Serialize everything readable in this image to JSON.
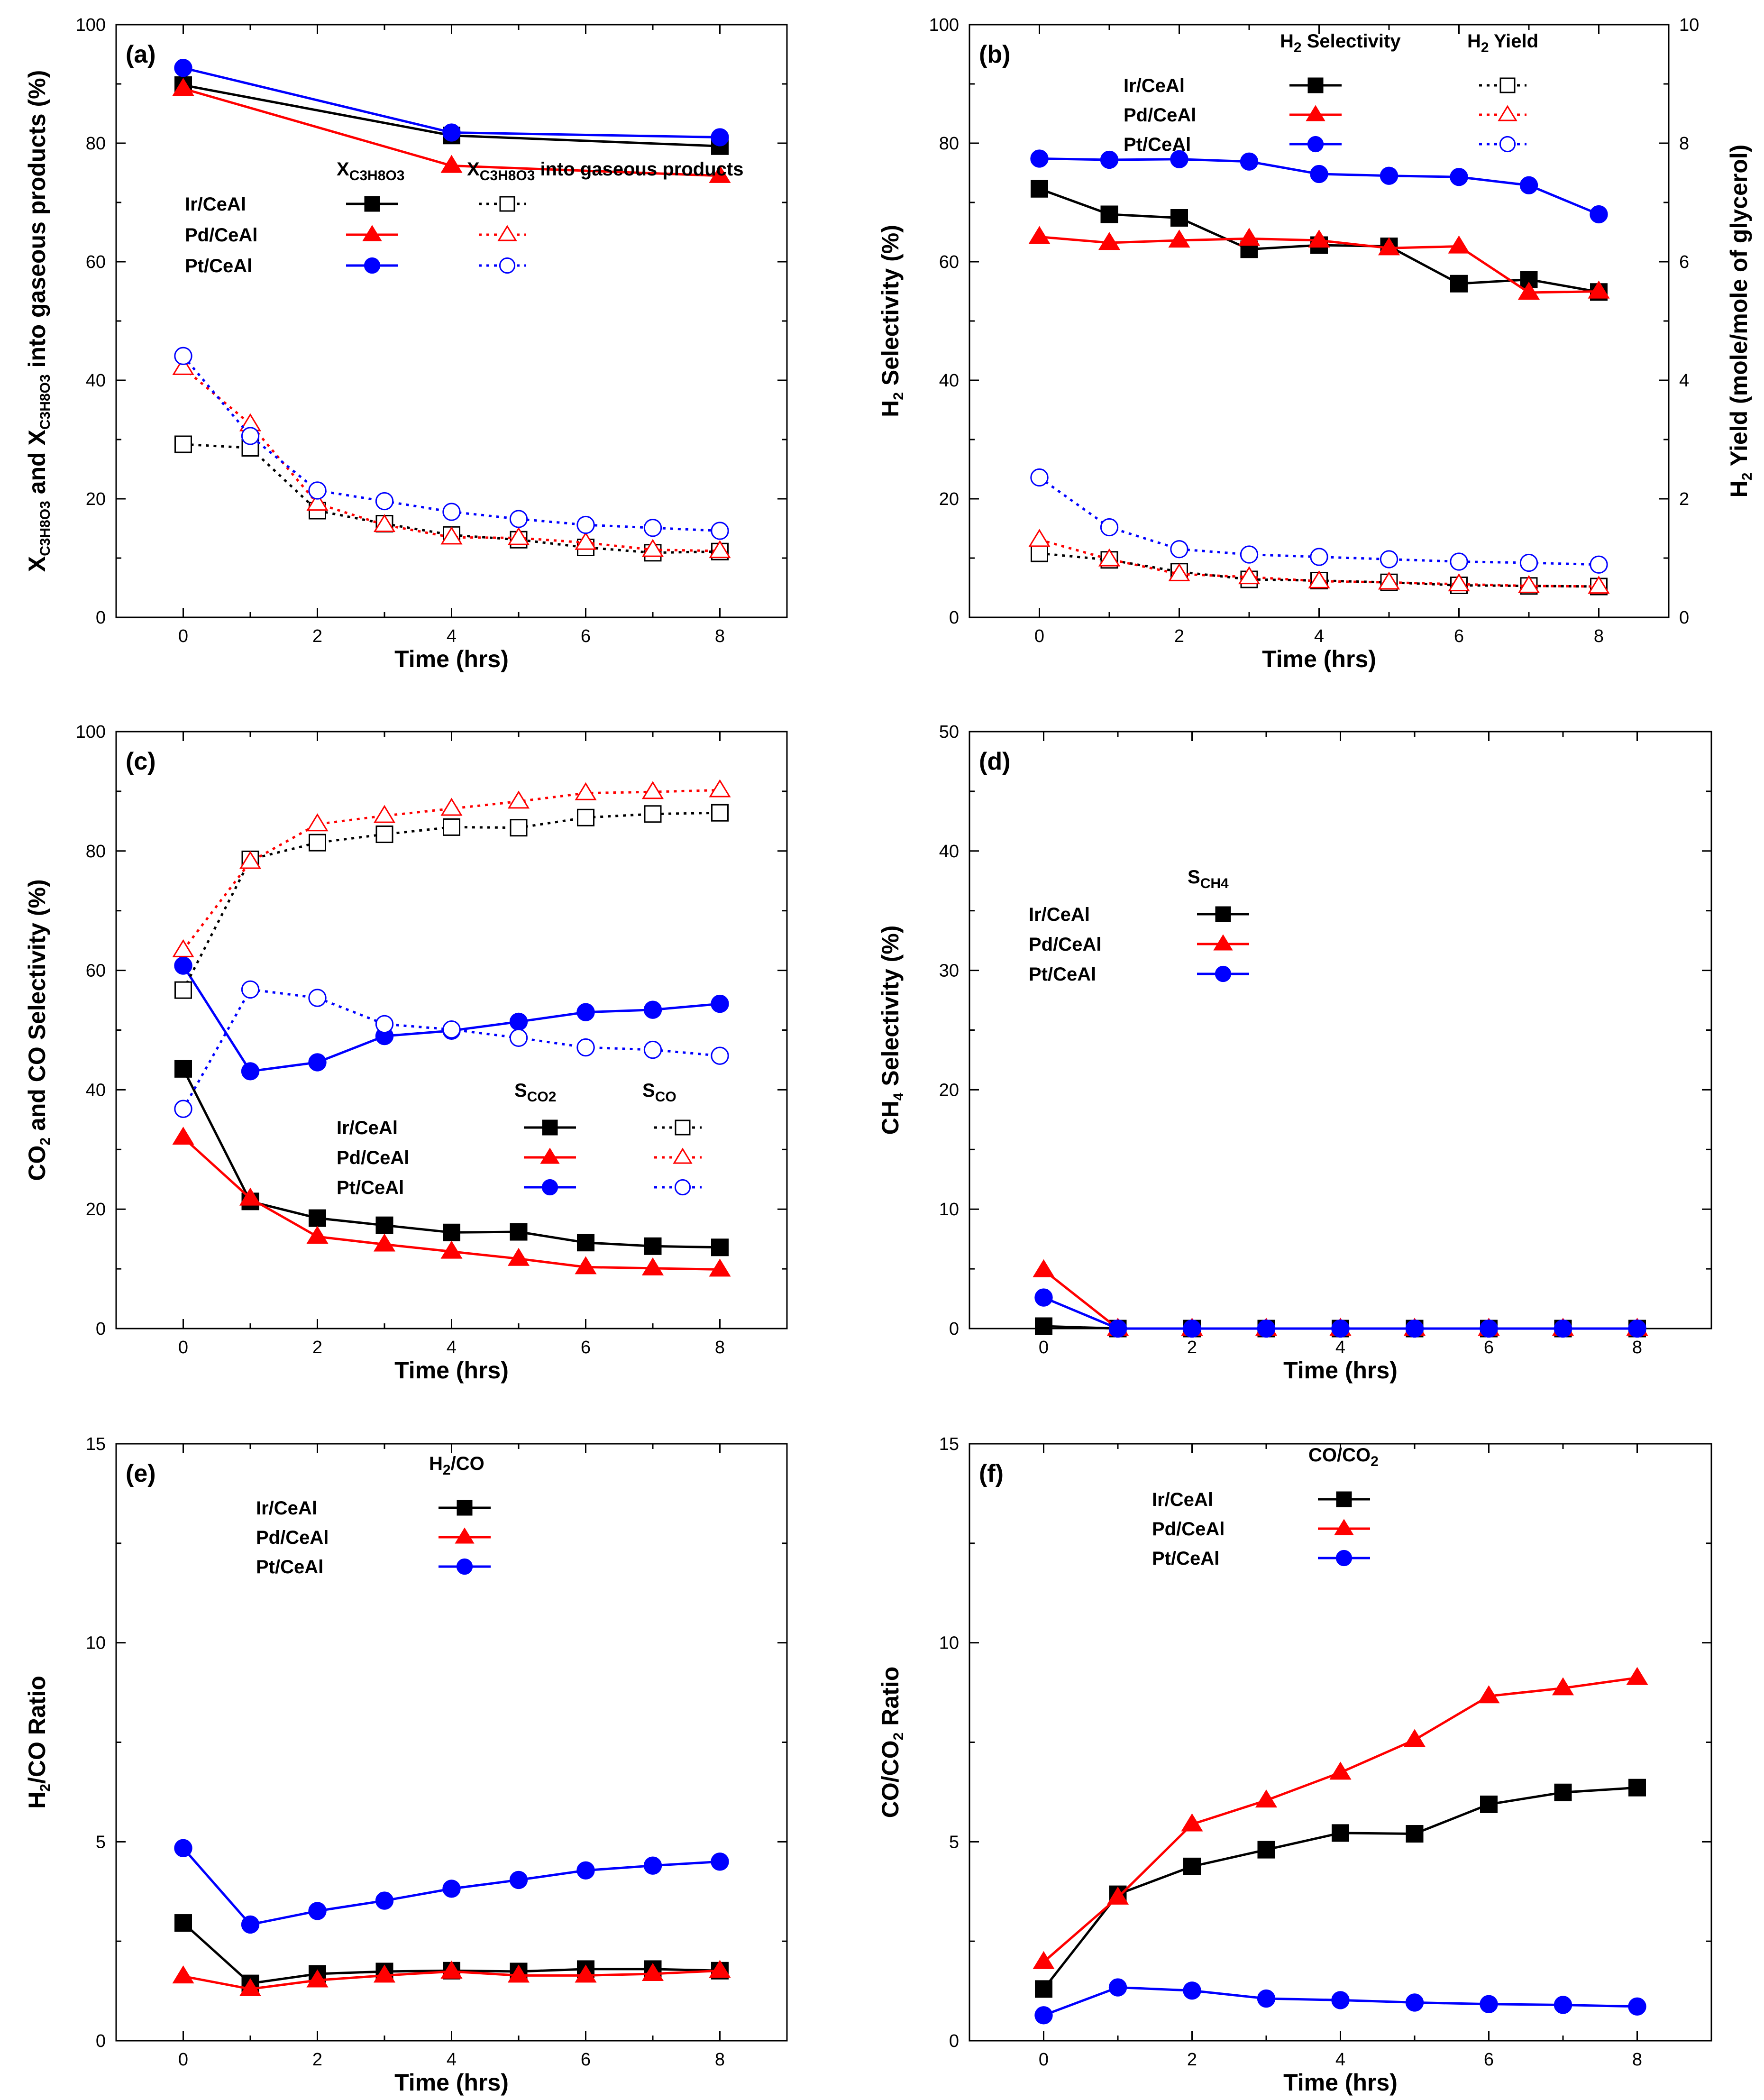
{
  "chart_data": [
    {
      "panel": "(a)",
      "type": "line",
      "xlabel": "Time (hrs)",
      "ylabel": "X_C3H8O3 and X_C3H8O3 into gaseous products (%)",
      "ylabel_parts": [
        "X",
        "C3H8O3",
        " and X",
        "C3H8O3",
        " into gaseous products (%)"
      ],
      "xlim": [
        -1,
        9
      ],
      "ylim": [
        0,
        100
      ],
      "xticks": [
        0,
        2,
        4,
        6,
        8
      ],
      "yticks": [
        0,
        20,
        40,
        60,
        80,
        100
      ],
      "legend": {
        "position": "center",
        "header_solid": [
          "X",
          "C3H8O3"
        ],
        "header_open": [
          "X",
          "C3H8O3",
          " into gaseous products"
        ],
        "catalysts": [
          "Ir/CeAl",
          "Pd/CeAl",
          "Pt/CeAl"
        ]
      },
      "series": [
        {
          "name": "Ir/CeAl X_C3H8O3",
          "color": "#000000",
          "marker": "square",
          "filled": true,
          "dash": false,
          "x": [
            0,
            4,
            8
          ],
          "values": [
            89.8,
            81.3,
            79.5
          ]
        },
        {
          "name": "Pd/CeAl X_C3H8O3",
          "color": "#ff0000",
          "marker": "triangle",
          "filled": true,
          "dash": false,
          "x": [
            0,
            4,
            8
          ],
          "values": [
            89.2,
            76.2,
            74.5
          ]
        },
        {
          "name": "Pt/CeAl X_C3H8O3",
          "color": "#0000ff",
          "marker": "circle",
          "filled": true,
          "dash": false,
          "x": [
            0,
            4,
            8
          ],
          "values": [
            92.7,
            81.8,
            81.0
          ]
        },
        {
          "name": "Ir/CeAl into gaseous products",
          "color": "#000000",
          "marker": "square",
          "filled": false,
          "dash": true,
          "x": [
            0,
            1,
            2,
            3,
            4,
            5,
            6,
            7,
            8
          ],
          "values": [
            29.2,
            28.6,
            18.0,
            15.8,
            13.9,
            13.1,
            11.8,
            10.9,
            11.1
          ]
        },
        {
          "name": "Pd/CeAl into gaseous products",
          "color": "#ff0000",
          "marker": "triangle",
          "filled": false,
          "dash": true,
          "x": [
            0,
            1,
            2,
            3,
            4,
            5,
            6,
            7,
            8
          ],
          "values": [
            42.1,
            32.6,
            19.2,
            15.6,
            13.5,
            13.4,
            12.6,
            11.4,
            11.2
          ]
        },
        {
          "name": "Pt/CeAl into gaseous products",
          "color": "#0000ff",
          "marker": "circle",
          "filled": false,
          "dash": true,
          "x": [
            0,
            1,
            2,
            3,
            4,
            5,
            6,
            7,
            8
          ],
          "values": [
            44.1,
            30.6,
            21.4,
            19.6,
            17.8,
            16.6,
            15.6,
            15.1,
            14.6
          ]
        }
      ]
    },
    {
      "panel": "(b)",
      "type": "line",
      "xlabel": "Time (hrs)",
      "ylabel": "H2 Selectivity (%)",
      "ylabel_parts": [
        "H",
        "2",
        " Selectivity (%)"
      ],
      "y2label": "H2 Yield (mole/mole of glycerol)",
      "y2label_parts": [
        "H",
        "2",
        " Yield (mole/mole of glycerol)"
      ],
      "xlim": [
        -1,
        9
      ],
      "ylim": [
        0,
        100
      ],
      "y2lim": [
        0,
        10
      ],
      "xticks": [
        0,
        2,
        4,
        6,
        8
      ],
      "yticks": [
        0,
        20,
        40,
        60,
        80,
        100
      ],
      "y2ticks": [
        0,
        2,
        4,
        6,
        8,
        10
      ],
      "legend": {
        "position": "top",
        "header_solid": [
          "H",
          "2",
          " Selectivity"
        ],
        "header_open": [
          "H",
          "2",
          " Yield"
        ],
        "catalysts": [
          "Ir/CeAl",
          "Pd/CeAl",
          "Pt/CeAl"
        ]
      },
      "series": [
        {
          "name": "Ir/CeAl H2 Selectivity",
          "color": "#000000",
          "marker": "square",
          "filled": true,
          "dash": false,
          "axis": "left",
          "x": [
            0,
            1,
            2,
            3,
            4,
            5,
            6,
            7,
            8
          ],
          "values": [
            72.3,
            68.0,
            67.4,
            62.1,
            62.8,
            62.6,
            56.3,
            57.0,
            54.9
          ]
        },
        {
          "name": "Pd/CeAl H2 Selectivity",
          "color": "#ff0000",
          "marker": "triangle",
          "filled": true,
          "dash": false,
          "axis": "left",
          "x": [
            0,
            1,
            2,
            3,
            4,
            5,
            6,
            7,
            8
          ],
          "values": [
            64.2,
            63.2,
            63.6,
            63.9,
            63.6,
            62.3,
            62.6,
            54.8,
            55.0
          ]
        },
        {
          "name": "Pt/CeAl H2 Selectivity",
          "color": "#0000ff",
          "marker": "circle",
          "filled": true,
          "dash": false,
          "axis": "left",
          "x": [
            0,
            1,
            2,
            3,
            4,
            5,
            6,
            7,
            8
          ],
          "values": [
            77.4,
            77.2,
            77.3,
            76.9,
            74.8,
            74.5,
            74.3,
            72.9,
            68.0
          ]
        },
        {
          "name": "Ir/CeAl H2 Yield",
          "color": "#000000",
          "marker": "square",
          "filled": false,
          "dash": true,
          "axis": "right",
          "x": [
            0,
            1,
            2,
            3,
            4,
            5,
            6,
            7,
            8
          ],
          "values": [
            1.08,
            0.97,
            0.77,
            0.64,
            0.62,
            0.59,
            0.54,
            0.53,
            0.52
          ]
        },
        {
          "name": "Pd/CeAl H2 Yield",
          "color": "#ff0000",
          "marker": "triangle",
          "filled": false,
          "dash": true,
          "axis": "right",
          "x": [
            0,
            1,
            2,
            3,
            4,
            5,
            6,
            7,
            8
          ],
          "values": [
            1.31,
            0.98,
            0.73,
            0.68,
            0.61,
            0.59,
            0.56,
            0.53,
            0.52
          ]
        },
        {
          "name": "Pt/CeAl H2 Yield",
          "color": "#0000ff",
          "marker": "circle",
          "filled": false,
          "dash": true,
          "axis": "right",
          "x": [
            0,
            1,
            2,
            3,
            4,
            5,
            6,
            7,
            8
          ],
          "values": [
            2.36,
            1.52,
            1.15,
            1.06,
            1.02,
            0.98,
            0.94,
            0.92,
            0.89
          ]
        }
      ]
    },
    {
      "panel": "(c)",
      "type": "line",
      "xlabel": "Time (hrs)",
      "ylabel": "CO2 and CO Selectivity (%)",
      "ylabel_parts": [
        "CO",
        "2",
        " and CO Selectivity (%)"
      ],
      "xlim": [
        -1,
        9
      ],
      "ylim": [
        0,
        100
      ],
      "xticks": [
        0,
        2,
        4,
        6,
        8
      ],
      "yticks": [
        0,
        20,
        40,
        60,
        80,
        100
      ],
      "legend": {
        "position": "lower-center",
        "header_solid": [
          "S",
          "CO2"
        ],
        "header_open": [
          "S",
          "CO"
        ],
        "catalysts": [
          "Ir/CeAl",
          "Pd/CeAl",
          "Pt/CeAl"
        ]
      },
      "series": [
        {
          "name": "Ir/CeAl S_CO2",
          "color": "#000000",
          "marker": "square",
          "filled": true,
          "dash": false,
          "x": [
            0,
            1,
            2,
            3,
            4,
            5,
            6,
            7,
            8
          ],
          "values": [
            43.5,
            21.3,
            18.5,
            17.3,
            16.1,
            16.2,
            14.4,
            13.8,
            13.6
          ]
        },
        {
          "name": "Pd/CeAl S_CO2",
          "color": "#ff0000",
          "marker": "triangle",
          "filled": true,
          "dash": false,
          "x": [
            0,
            1,
            2,
            3,
            4,
            5,
            6,
            7,
            8
          ],
          "values": [
            32.0,
            21.8,
            15.4,
            14.1,
            12.9,
            11.7,
            10.3,
            10.1,
            9.9
          ]
        },
        {
          "name": "Pt/CeAl S_CO2",
          "color": "#0000ff",
          "marker": "circle",
          "filled": true,
          "dash": false,
          "x": [
            0,
            1,
            2,
            3,
            4,
            5,
            6,
            7,
            8
          ],
          "values": [
            60.8,
            43.1,
            44.6,
            49.0,
            49.9,
            51.4,
            53.0,
            53.4,
            54.4
          ]
        },
        {
          "name": "Ir/CeAl S_CO",
          "color": "#000000",
          "marker": "square",
          "filled": false,
          "dash": true,
          "x": [
            0,
            1,
            2,
            3,
            4,
            5,
            6,
            7,
            8
          ],
          "values": [
            56.7,
            78.6,
            81.4,
            82.8,
            84.0,
            83.9,
            85.6,
            86.2,
            86.4
          ]
        },
        {
          "name": "Pd/CeAl S_CO",
          "color": "#ff0000",
          "marker": "triangle",
          "filled": false,
          "dash": true,
          "x": [
            0,
            1,
            2,
            3,
            4,
            5,
            6,
            7,
            8
          ],
          "values": [
            63.4,
            78.2,
            84.5,
            85.9,
            87.1,
            88.3,
            89.7,
            89.9,
            90.2
          ]
        },
        {
          "name": "Pt/CeAl S_CO",
          "color": "#0000ff",
          "marker": "circle",
          "filled": false,
          "dash": true,
          "x": [
            0,
            1,
            2,
            3,
            4,
            5,
            6,
            7,
            8
          ],
          "values": [
            36.8,
            56.8,
            55.4,
            51.0,
            50.1,
            48.7,
            47.1,
            46.7,
            45.7
          ]
        }
      ]
    },
    {
      "panel": "(d)",
      "type": "line",
      "xlabel": "Time (hrs)",
      "ylabel": "CH4 Selectivity (%)",
      "ylabel_parts": [
        "CH",
        "4",
        " Selectivity (%)"
      ],
      "xlim": [
        -1,
        9
      ],
      "ylim": [
        0,
        50
      ],
      "xticks": [
        0,
        2,
        4,
        6,
        8
      ],
      "yticks": [
        0,
        10,
        20,
        30,
        40,
        50
      ],
      "legend": {
        "position": "upper-left",
        "header_solid": [
          "S",
          "CH4"
        ],
        "catalysts": [
          "Ir/CeAl",
          "Pd/CeAl",
          "Pt/CeAl"
        ]
      },
      "series": [
        {
          "name": "Ir/CeAl S_CH4",
          "color": "#000000",
          "marker": "square",
          "filled": true,
          "dash": false,
          "x": [
            0,
            1,
            2,
            3,
            4,
            5,
            6,
            7,
            8
          ],
          "values": [
            0.2,
            0,
            0,
            0,
            0,
            0,
            0,
            0,
            0
          ]
        },
        {
          "name": "Pd/CeAl S_CH4",
          "color": "#ff0000",
          "marker": "triangle",
          "filled": true,
          "dash": false,
          "x": [
            0,
            1,
            2,
            3,
            4,
            5,
            6,
            7,
            8
          ],
          "values": [
            4.9,
            0,
            0,
            0,
            0,
            0,
            0,
            0,
            0
          ]
        },
        {
          "name": "Pt/CeAl S_CH4",
          "color": "#0000ff",
          "marker": "circle",
          "filled": true,
          "dash": false,
          "x": [
            0,
            1,
            2,
            3,
            4,
            5,
            6,
            7,
            8
          ],
          "values": [
            2.6,
            0,
            0,
            0,
            0,
            0,
            0,
            0,
            0
          ]
        }
      ]
    },
    {
      "panel": "(e)",
      "type": "line",
      "xlabel": "Time (hrs)",
      "ylabel": "H2/CO Ratio",
      "ylabel_parts": [
        "H",
        "2",
        "/CO Ratio"
      ],
      "xlim": [
        -1,
        9
      ],
      "ylim": [
        0,
        15
      ],
      "xticks": [
        0,
        2,
        4,
        6,
        8
      ],
      "yticks": [
        0,
        5,
        10,
        15
      ],
      "legend": {
        "position": "upper-left",
        "header_solid": [
          "H",
          "2",
          "/CO"
        ],
        "catalysts": [
          "Ir/CeAl",
          "Pd/CeAl",
          "Pt/CeAl"
        ]
      },
      "series": [
        {
          "name": "Ir/CeAl H2/CO",
          "color": "#000000",
          "marker": "square",
          "filled": true,
          "dash": false,
          "x": [
            0,
            1,
            2,
            3,
            4,
            5,
            6,
            7,
            8
          ],
          "values": [
            2.96,
            1.44,
            1.68,
            1.74,
            1.76,
            1.74,
            1.8,
            1.8,
            1.76
          ]
        },
        {
          "name": "Pd/CeAl H2/CO",
          "color": "#ff0000",
          "marker": "triangle",
          "filled": true,
          "dash": false,
          "x": [
            0,
            1,
            2,
            3,
            4,
            5,
            6,
            7,
            8
          ],
          "values": [
            1.62,
            1.3,
            1.52,
            1.64,
            1.74,
            1.64,
            1.64,
            1.68,
            1.76
          ]
        },
        {
          "name": "Pt/CeAl H2/CO",
          "color": "#0000ff",
          "marker": "circle",
          "filled": true,
          "dash": false,
          "x": [
            0,
            1,
            2,
            3,
            4,
            5,
            6,
            7,
            8
          ],
          "values": [
            4.84,
            2.92,
            3.26,
            3.52,
            3.82,
            4.04,
            4.28,
            4.4,
            4.5
          ]
        }
      ]
    },
    {
      "panel": "(f)",
      "type": "line",
      "xlabel": "Time (hrs)",
      "ylabel": "CO/CO2 Ratio",
      "ylabel_parts": [
        "CO/CO",
        "2",
        " Ratio"
      ],
      "xlim": [
        -1,
        9
      ],
      "ylim": [
        0,
        15
      ],
      "xticks": [
        0,
        2,
        4,
        6,
        8
      ],
      "yticks": [
        0,
        5,
        10,
        15
      ],
      "legend": {
        "position": "upper-left",
        "header_solid": [
          "CO/CO",
          "2"
        ],
        "catalysts": [
          "Ir/CeAl",
          "Pd/CeAl",
          "Pt/CeAl"
        ]
      },
      "series": [
        {
          "name": "Ir/CeAl CO/CO2",
          "color": "#000000",
          "marker": "square",
          "filled": true,
          "dash": false,
          "x": [
            0,
            1,
            2,
            3,
            4,
            5,
            6,
            7,
            8
          ],
          "values": [
            1.3,
            3.68,
            4.38,
            4.8,
            5.22,
            5.2,
            5.94,
            6.24,
            6.36
          ]
        },
        {
          "name": "Pd/CeAl CO/CO2",
          "color": "#ff0000",
          "marker": "triangle",
          "filled": true,
          "dash": false,
          "x": [
            0,
            1,
            2,
            3,
            4,
            5,
            6,
            7,
            8
          ],
          "values": [
            1.98,
            3.6,
            5.44,
            6.04,
            6.74,
            7.56,
            8.66,
            8.86,
            9.12
          ]
        },
        {
          "name": "Pt/CeAl CO/CO2",
          "color": "#0000ff",
          "marker": "circle",
          "filled": true,
          "dash": false,
          "x": [
            0,
            1,
            2,
            3,
            4,
            5,
            6,
            7,
            8
          ],
          "values": [
            0.64,
            1.34,
            1.26,
            1.06,
            1.02,
            0.96,
            0.92,
            0.9,
            0.86
          ]
        }
      ]
    }
  ]
}
